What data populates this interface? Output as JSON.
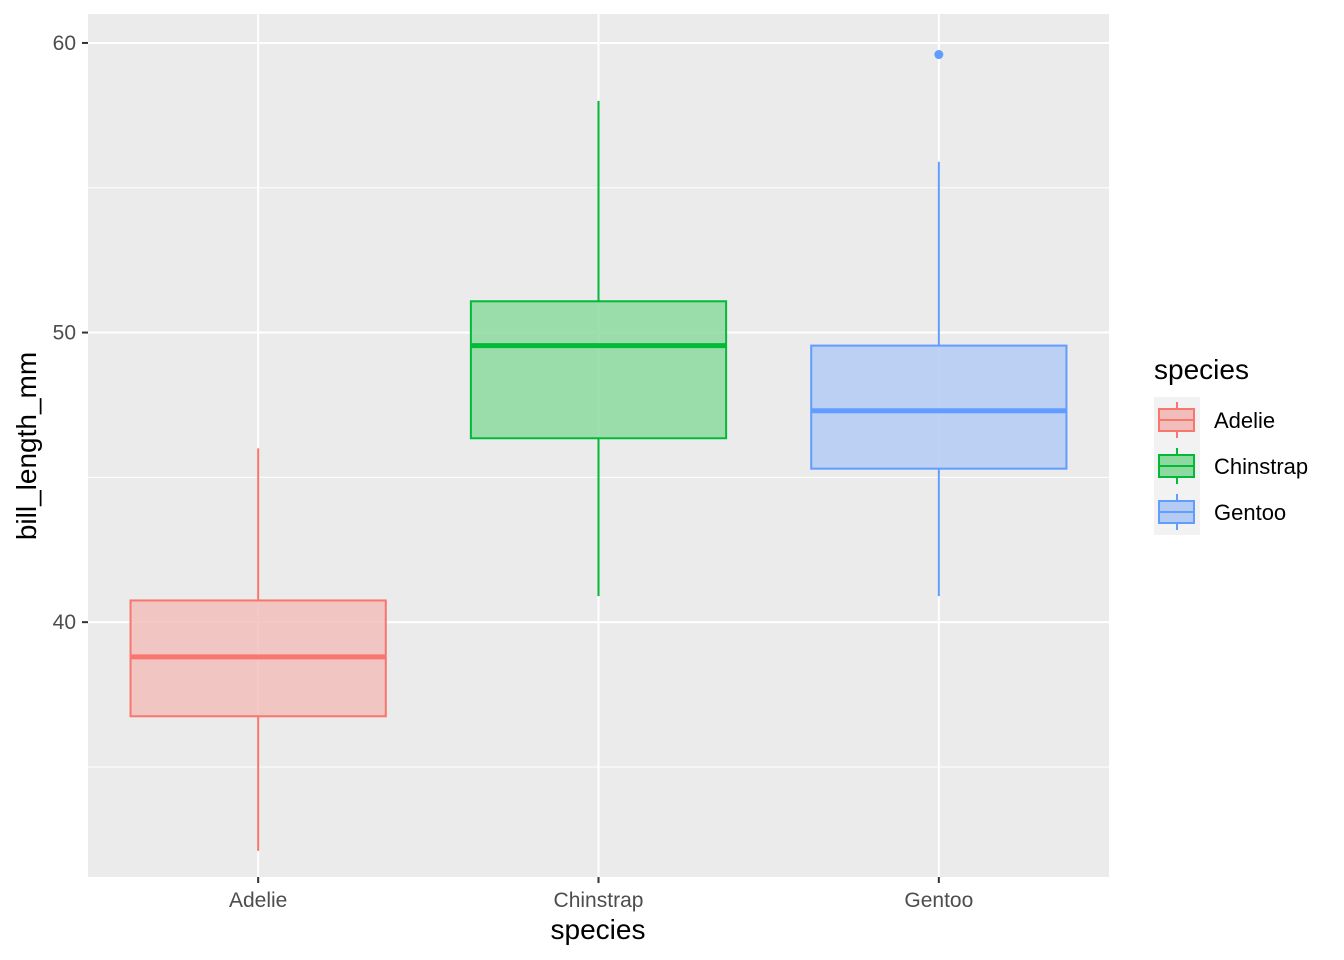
{
  "chart_data": {
    "type": "boxplot",
    "title": "",
    "xlabel": "species",
    "ylabel": "bill_length_mm",
    "ylim": [
      31.2,
      61.0
    ],
    "y_ticks": [
      40,
      50,
      60
    ],
    "y_tick_labels": [
      "40",
      "50",
      "60"
    ],
    "y_minor_ticks": [
      35,
      45,
      55
    ],
    "grid": true,
    "categories": [
      "Adelie",
      "Chinstrap",
      "Gentoo"
    ],
    "series": [
      {
        "name": "Adelie",
        "color": "#F8766D",
        "fill": "#F2BEBB",
        "min": 32.1,
        "q1": 36.75,
        "median": 38.8,
        "q3": 40.75,
        "max": 46.0,
        "outliers": []
      },
      {
        "name": "Chinstrap",
        "color": "#00BA38",
        "fill": "#8DD9A0",
        "min": 40.9,
        "q1": 46.35,
        "median": 49.55,
        "q3": 51.08,
        "max": 58.0,
        "outliers": []
      },
      {
        "name": "Gentoo",
        "color": "#619CFF",
        "fill": "#B4CBF4",
        "min": 40.9,
        "q1": 45.3,
        "median": 47.3,
        "q3": 49.55,
        "max": 55.9,
        "outliers": [
          59.6
        ]
      }
    ],
    "legend": {
      "title": "species",
      "position": "right",
      "entries": [
        "Adelie",
        "Chinstrap",
        "Gentoo"
      ]
    }
  }
}
